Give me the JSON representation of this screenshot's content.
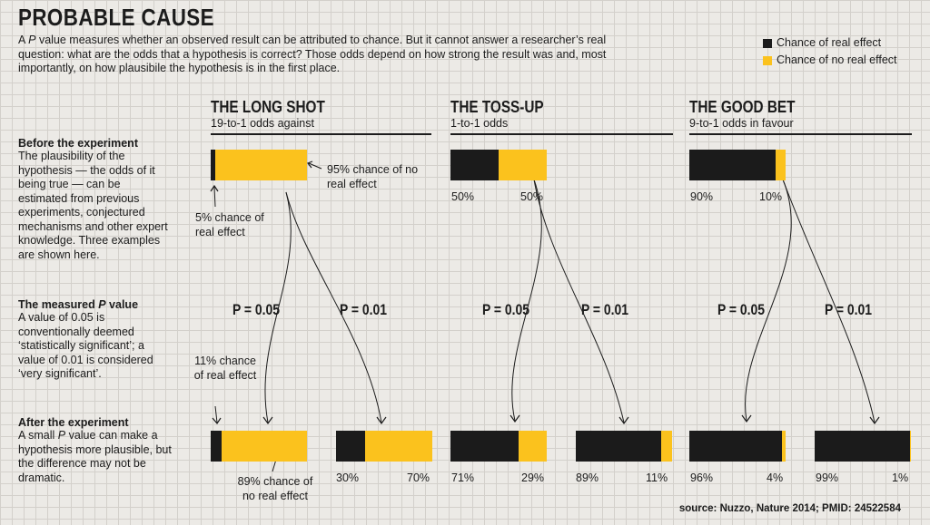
{
  "title": "PROBABLE CAUSE",
  "intro_parts": {
    "a": "A ",
    "p": "P",
    "b": " value measures whether an observed result can be attributed to chance. But it cannot answer a researcher’s real question: what are the odds that a hypothesis is correct? Those odds depend on how strong the result was and, most importantly, on how plausibile the hypothesis is in the first place."
  },
  "legend": {
    "real": "Chance of real effect",
    "no_real": "Chance of no real effect"
  },
  "colors": {
    "real": "#1b1b1b",
    "no_real": "#fbc21d",
    "rule": "#1c1c1c"
  },
  "columns": [
    {
      "title": "THE LONG SHOT",
      "subtitle": "19-to-1 odds against"
    },
    {
      "title": "THE TOSS-UP",
      "subtitle": "1-to-1 odds"
    },
    {
      "title": "THE GOOD BET",
      "subtitle": "9-to-1 odds in favour"
    }
  ],
  "sections": {
    "before": {
      "heading": "Before the experiment",
      "text": "The plausibility of the hypothesis — the odds of it being true — can be estimated from previous experiments, conjectured mechanisms and other expert knowledge. Three examples are shown here."
    },
    "pvalue": {
      "heading_a": "The measured ",
      "heading_p": "P",
      "heading_b": " value",
      "text": "A value of 0.05 is conventionally deemed ‘statistically significant’; a value of 0.01 is considered ‘very significant’."
    },
    "after": {
      "heading": "After the experiment",
      "text_a": "A small ",
      "text_p": "P",
      "text_b": " value can make a hypothesis more plausible, but the difference may not be dramatic."
    }
  },
  "before_bars": [
    {
      "real": 5,
      "no_real": 95,
      "label_real": "",
      "label_no_real": ""
    },
    {
      "real": 50,
      "no_real": 50,
      "label_real": "50%",
      "label_no_real": "50%"
    },
    {
      "real": 90,
      "no_real": 10,
      "label_real": "90%",
      "label_no_real": "10%"
    }
  ],
  "pvalues": [
    "P = 0.05",
    "P = 0.01",
    "P = 0.05",
    "P = 0.01",
    "P = 0.05",
    "P = 0.01"
  ],
  "after_bars": [
    {
      "real": 11,
      "no_real": 89,
      "label_real": "",
      "label_no_real": ""
    },
    {
      "real": 30,
      "no_real": 70,
      "label_real": "30%",
      "label_no_real": "70%"
    },
    {
      "real": 71,
      "no_real": 29,
      "label_real": "71%",
      "label_no_real": "29%"
    },
    {
      "real": 89,
      "no_real": 11,
      "label_real": "89%",
      "label_no_real": "11%"
    },
    {
      "real": 96,
      "no_real": 4,
      "label_real": "96%",
      "label_no_real": "4%"
    },
    {
      "real": 99,
      "no_real": 1,
      "label_real": "99%",
      "label_no_real": "1%"
    }
  ],
  "annotations": {
    "before_no_real": "95% chance of no real effect",
    "before_real": "5% chance of real effect",
    "after_real": "11% chance of real effect",
    "after_no_real": "89% chance of no real effect"
  },
  "source": "source: Nuzzo, Nature 2014; PMID: 24522584"
}
